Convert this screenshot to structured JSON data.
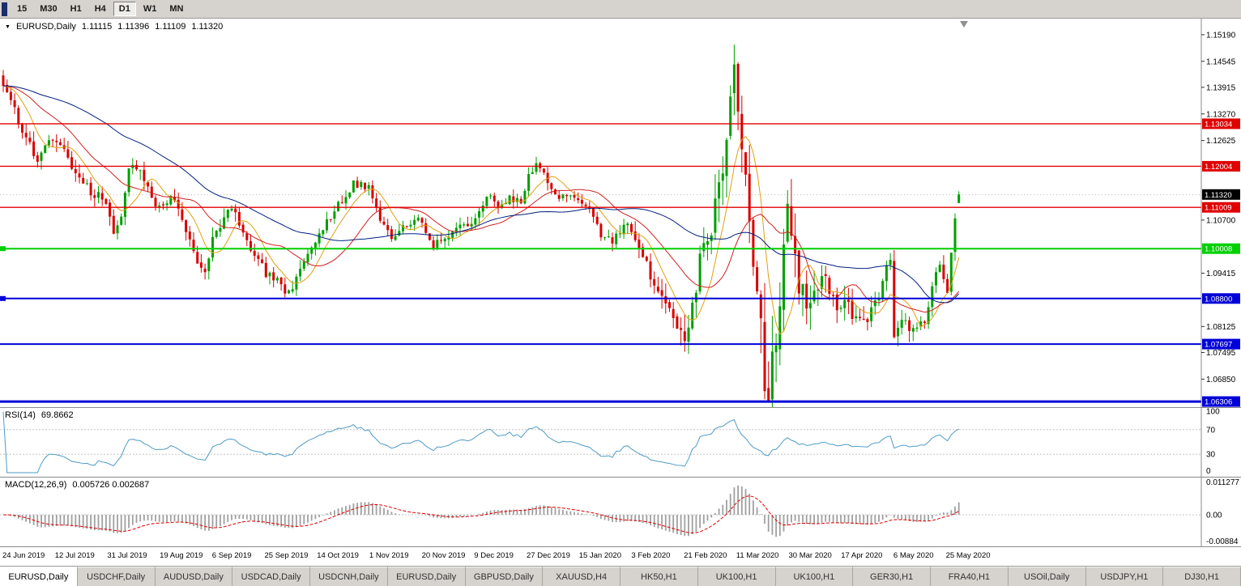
{
  "toolbar": {
    "timeframes": [
      "15",
      "M30",
      "H1",
      "H4",
      "D1",
      "W1",
      "MN"
    ],
    "active_timeframe": "D1"
  },
  "chart_header": {
    "symbol": "EURUSD,Daily",
    "open": "1.11115",
    "high": "1.11396",
    "low": "1.11109",
    "close": "1.11320"
  },
  "price_axis": {
    "labels": [
      "1.15190",
      "1.14545",
      "1.13915",
      "1.13270",
      "1.12625",
      "1.10700",
      "1.09415",
      "1.08125",
      "1.07495",
      "1.06850"
    ],
    "current_price": "1.11320"
  },
  "hlines": [
    {
      "price": 1.13034,
      "label": "1.13034",
      "color": "#e00000",
      "width": 1.4,
      "left_marker": false
    },
    {
      "price": 1.12004,
      "label": "1.12004",
      "color": "#e00000",
      "width": 1.4,
      "left_marker": false
    },
    {
      "price": 1.11009,
      "label": "1.11009",
      "color": "#e00000",
      "width": 1.4,
      "left_marker": false
    },
    {
      "price": 1.10008,
      "label": "1.10008",
      "color": "#00d000",
      "width": 2,
      "left_marker": true
    },
    {
      "price": 1.088,
      "label": "1.08800",
      "color": "#0000d8",
      "width": 2,
      "left_marker": true
    },
    {
      "price": 1.07697,
      "label": "1.07697",
      "color": "#0000d8",
      "width": 2,
      "left_marker": false
    },
    {
      "price": 1.06306,
      "label": "1.06306",
      "color": "#0000d8",
      "width": 3,
      "left_marker": false
    }
  ],
  "rsi_panel": {
    "label": "RSI(14)",
    "value": "69.8662",
    "axis_labels": [
      "100",
      "70",
      "30",
      "0"
    ],
    "level_lines": [
      70,
      30
    ]
  },
  "macd_panel": {
    "label": "MACD(12,26,9)",
    "values": "0.005726 0.002687",
    "axis_top": "0.011277",
    "axis_zero": "0.00",
    "axis_bottom": "-0.00884"
  },
  "date_axis": [
    "24 Jun 2019",
    "12 Jul 2019",
    "31 Jul 2019",
    "19 Aug 2019",
    "6 Sep 2019",
    "25 Sep 2019",
    "14 Oct 2019",
    "1 Nov 2019",
    "20 Nov 2019",
    "9 Dec 2019",
    "27 Dec 2019",
    "15 Jan 2020",
    "3 Feb 2020",
    "21 Feb 2020",
    "11 Mar 2020",
    "30 Mar 2020",
    "17 Apr 2020",
    "6 May 2020",
    "25 May 2020"
  ],
  "tabs": [
    "EURUSD,Daily",
    "USDCHF,Daily",
    "AUDUSD,Daily",
    "USDCAD,Daily",
    "USDCNH,Daily",
    "EURUSD,Daily",
    "GBPUSD,Daily",
    "XAUUSD,H4",
    "HK50,H1",
    "UK100,H1",
    "UK100,H1",
    "GER30,H1",
    "FRA40,H1",
    "USOil,Daily",
    "USDJPY,H1",
    "DJ30,H1"
  ],
  "active_tab": 0,
  "colors": {
    "bull": "#009f00",
    "bear": "#d80000",
    "rsi_line": "#4f9bc6",
    "macd_bar": "#a0a0a0",
    "macd_signal": "#e00000",
    "axis_sep": "#888888",
    "current_badge": "#000000"
  },
  "chart_data": {
    "type": "candlestick",
    "symbol": "EURUSD",
    "timeframe": "Daily",
    "visible_range": [
      "24 Jun 2019",
      "1 Jun 2020"
    ],
    "last_candle": {
      "open": 1.11115,
      "high": 1.11396,
      "low": 1.11109,
      "close": 1.1132
    },
    "key_levels": [
      1.13034,
      1.12004,
      1.11009,
      1.10008,
      1.088,
      1.07697,
      1.06306
    ],
    "price_scale": {
      "top": 1.1558,
      "bottom": 1.0617
    },
    "candle_count": 252,
    "close_anchors": [
      [
        0,
        1.1395
      ],
      [
        2,
        1.136
      ],
      [
        5,
        1.1285
      ],
      [
        9,
        1.122
      ],
      [
        12,
        1.1255
      ],
      [
        14,
        1.127
      ],
      [
        17,
        1.122
      ],
      [
        20,
        1.117
      ],
      [
        23,
        1.114
      ],
      [
        26,
        1.112
      ],
      [
        28,
        1.1075
      ],
      [
        29,
        1.104
      ],
      [
        31,
        1.1085
      ],
      [
        33,
        1.1185
      ],
      [
        35,
        1.1205
      ],
      [
        38,
        1.114
      ],
      [
        41,
        1.11
      ],
      [
        44,
        1.1125
      ],
      [
        47,
        1.108
      ],
      [
        50,
        1.099
      ],
      [
        53,
        1.0935
      ],
      [
        55,
        1.103
      ],
      [
        58,
        1.1075
      ],
      [
        60,
        1.11
      ],
      [
        63,
        1.104
      ],
      [
        66,
        1.099
      ],
      [
        69,
        1.094
      ],
      [
        72,
        1.092
      ],
      [
        75,
        1.089
      ],
      [
        77,
        1.093
      ],
      [
        80,
        1.098
      ],
      [
        83,
        1.104
      ],
      [
        86,
        1.1075
      ],
      [
        89,
        1.112
      ],
      [
        92,
        1.116
      ],
      [
        96,
        1.115
      ],
      [
        99,
        1.107
      ],
      [
        102,
        1.103
      ],
      [
        105,
        1.105
      ],
      [
        108,
        1.1075
      ],
      [
        110,
        1.106
      ],
      [
        113,
        1.101
      ],
      [
        116,
        1.102
      ],
      [
        119,
        1.106
      ],
      [
        122,
        1.1055
      ],
      [
        124,
        1.1075
      ],
      [
        127,
        1.113
      ],
      [
        130,
        1.111
      ],
      [
        133,
        1.1125
      ],
      [
        136,
        1.1115
      ],
      [
        138,
        1.1175
      ],
      [
        140,
        1.121
      ],
      [
        143,
        1.116
      ],
      [
        146,
        1.112
      ],
      [
        149,
        1.1135
      ],
      [
        151,
        1.111
      ],
      [
        154,
        1.1095
      ],
      [
        157,
        1.1035
      ],
      [
        160,
        1.102
      ],
      [
        163,
        1.106
      ],
      [
        165,
        1.104
      ],
      [
        168,
        1.098
      ],
      [
        171,
        1.0915
      ],
      [
        174,
        1.087
      ],
      [
        177,
        1.0805
      ],
      [
        179,
        1.079
      ],
      [
        181,
        1.085
      ],
      [
        183,
        1.098
      ],
      [
        185,
        1.103
      ],
      [
        186,
        1.106
      ],
      [
        188,
        1.114
      ],
      [
        190,
        1.128
      ],
      [
        191,
        1.136
      ],
      [
        192,
        1.145
      ],
      [
        193,
        1.13
      ],
      [
        194,
        1.127
      ],
      [
        195,
        1.1184
      ],
      [
        196,
        1.11
      ],
      [
        197,
        1.0995
      ],
      [
        198,
        1.092
      ],
      [
        199,
        1.079
      ],
      [
        200,
        1.069
      ],
      [
        201,
        1.0655
      ],
      [
        202,
        1.0725
      ],
      [
        203,
        1.079
      ],
      [
        204,
        1.0885
      ],
      [
        205,
        1.103
      ],
      [
        206,
        1.114
      ],
      [
        207,
        1.1046
      ],
      [
        209,
        1.092
      ],
      [
        211,
        1.0855
      ],
      [
        213,
        1.09
      ],
      [
        215,
        1.093
      ],
      [
        217,
        1.091
      ],
      [
        219,
        1.0845
      ],
      [
        220,
        1.0875
      ],
      [
        222,
        1.0862
      ],
      [
        224,
        1.083
      ],
      [
        226,
        1.082
      ],
      [
        228,
        1.085
      ],
      [
        230,
        1.088
      ],
      [
        232,
        1.0955
      ],
      [
        233,
        1.098
      ],
      [
        234,
        1.0795
      ],
      [
        236,
        1.0834
      ],
      [
        238,
        1.081
      ],
      [
        240,
        1.0805
      ],
      [
        242,
        1.0825
      ],
      [
        244,
        1.0915
      ],
      [
        246,
        1.095
      ],
      [
        248,
        1.0898
      ],
      [
        249,
        1.0983
      ],
      [
        250,
        1.1076
      ],
      [
        251,
        1.1132
      ]
    ],
    "vol_anchors": [
      [
        0,
        0.005
      ],
      [
        30,
        0.0048
      ],
      [
        60,
        0.0046
      ],
      [
        100,
        0.0038
      ],
      [
        140,
        0.0036
      ],
      [
        160,
        0.004
      ],
      [
        172,
        0.006
      ],
      [
        180,
        0.0085
      ],
      [
        186,
        0.011
      ],
      [
        192,
        0.017
      ],
      [
        200,
        0.019
      ],
      [
        206,
        0.015
      ],
      [
        212,
        0.0105
      ],
      [
        218,
        0.0075
      ],
      [
        228,
        0.006
      ],
      [
        240,
        0.0052
      ],
      [
        251,
        0.0055
      ]
    ],
    "force": {
      "192": {
        "h": 1.1495
      },
      "200": {
        "l": 1.0636
      },
      "201": {
        "l": 1.0636
      },
      "251": {
        "o": 1.11115,
        "h": 1.11396,
        "l": 1.11109,
        "c": 1.1132
      }
    },
    "moving_averages": [
      {
        "period": 8,
        "color": "#e0a010"
      },
      {
        "period": 20,
        "color": "#d02020"
      },
      {
        "period": 50,
        "color": "#002080"
      }
    ],
    "rsi": {
      "period": 14,
      "last": 69.8662,
      "range": [
        0,
        100
      ],
      "levels": [
        70,
        30
      ]
    },
    "macd": {
      "fast": 12,
      "slow": 26,
      "signal": 9,
      "last_main": 0.005726,
      "last_signal": 0.002687,
      "axis": [
        0.011277,
        0.0,
        -0.00884
      ]
    },
    "seed": 11
  }
}
